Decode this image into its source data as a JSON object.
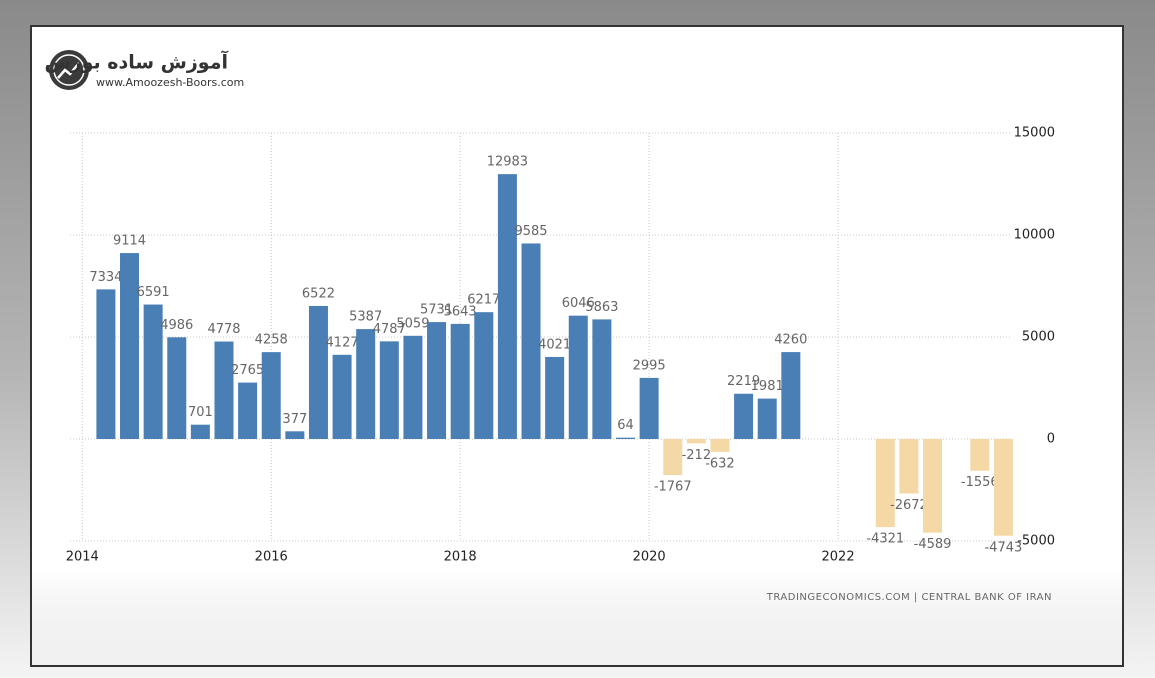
{
  "logo": {
    "title": "آموزش ساده بورس",
    "url": "www.Amoozesh-Boors.com"
  },
  "chart_data": {
    "type": "bar",
    "x": [
      2014.25,
      2014.5,
      2014.75,
      2015,
      2015.25,
      2015.5,
      2015.75,
      2016,
      2016.25,
      2016.5,
      2016.75,
      2017,
      2017.25,
      2017.5,
      2017.75,
      2018,
      2018.25,
      2018.5,
      2018.75,
      2019,
      2019.25,
      2019.5,
      2019.75,
      2020,
      2020.25,
      2020.5,
      2020.75,
      2021,
      2021.25,
      2021.5,
      2022.5,
      2022.75,
      2023,
      2023.5,
      2023.75
    ],
    "values": [
      7334,
      9114,
      6591,
      4986,
      701,
      4778,
      2765,
      4258,
      377,
      6522,
      4127,
      5387,
      4787,
      5059,
      5731,
      5643,
      6217,
      12983,
      9585,
      4021,
      6046,
      5863,
      64,
      2995,
      -1767,
      -212,
      -632,
      2219,
      1981,
      4260,
      -4321,
      -2672,
      -4589,
      -1556,
      -4743
    ],
    "color": "#4a7fb5",
    "negative_color": "#f4d9a6",
    "xlim": [
      2013.87,
      2023.82
    ],
    "xticks": [
      2014,
      2016,
      2018,
      2020,
      2022
    ],
    "ylim": [
      -5000,
      15000
    ],
    "yticks": [
      -5000,
      0,
      5000,
      10000,
      15000
    ],
    "grid": true,
    "source": "TRADINGECONOMICS.COM | CENTRAL BANK OF IRAN"
  }
}
